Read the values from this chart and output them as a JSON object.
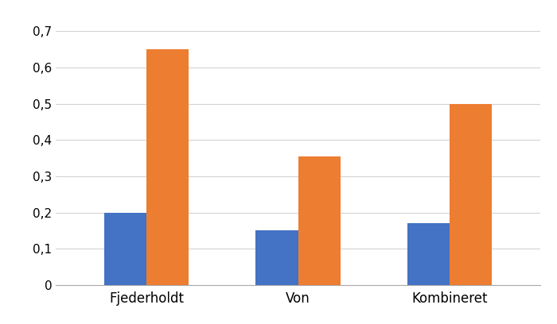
{
  "categories": [
    "Fjederholdt",
    "Von",
    "Kombineret"
  ],
  "blue_values": [
    0.2,
    0.15,
    0.17
  ],
  "orange_values": [
    0.65,
    0.355,
    0.5
  ],
  "blue_color": "#4472c4",
  "orange_color": "#ed7d31",
  "ylim": [
    0,
    0.75
  ],
  "yticks": [
    0,
    0.1,
    0.2,
    0.3,
    0.4,
    0.5,
    0.6,
    0.7
  ],
  "ytick_labels": [
    "0",
    "0,1",
    "0,2",
    "0,3",
    "0,4",
    "0,5",
    "0,6",
    "0,7"
  ],
  "bar_width": 0.28,
  "background_color": "#ffffff",
  "grid_color": "#d3d3d3",
  "tick_fontsize": 11,
  "xlabel_fontsize": 12
}
